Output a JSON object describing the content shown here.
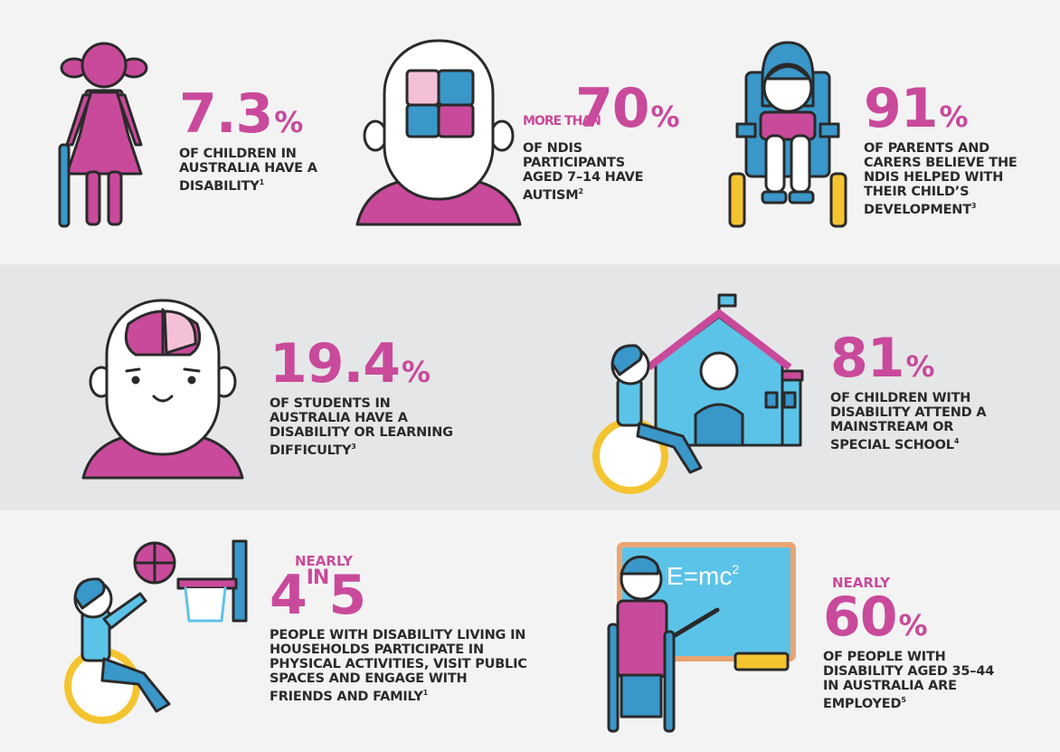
{
  "colors": {
    "pink": "#c94a9b",
    "blue": "#3a97c9",
    "light_blue": "#5cc3e8",
    "yellow": "#f4c430",
    "ink": "#2a2a2a",
    "skin": "#ffffff"
  },
  "stats": [
    {
      "value": "7.3",
      "unit": "%",
      "desc": "OF CHILDREN IN AUSTRALIA HAVE A DISABILITY",
      "ref": "1",
      "icon": "girl-with-cane-icon"
    },
    {
      "prefix": "MORE THAN",
      "value": "70",
      "unit": "%",
      "desc": "OF NDIS PARTICIPANTS AGED 7–14 HAVE AUTISM",
      "ref": "2",
      "icon": "head-puzzle-icon"
    },
    {
      "value": "91",
      "unit": "%",
      "desc": "OF PARENTS AND CARERS BELIEVE THE NDIS HELPED WITH THEIR CHILD’S DEVELOPMENT",
      "ref": "3",
      "icon": "girl-wheelchair-icon"
    },
    {
      "value": "19.4",
      "unit": "%",
      "desc": "OF STUDENTS IN AUSTRALIA HAVE A DISABILITY OR LEARNING DIFFICULTY",
      "ref": "3",
      "icon": "head-brain-icon"
    },
    {
      "value": "81",
      "unit": "%",
      "desc": "OF CHILDREN WITH DISABILITY ATTEND A MAINSTREAM OR SPECIAL SCHOOL",
      "ref": "4",
      "icon": "school-wheelchair-icon"
    },
    {
      "prefix": "NEARLY",
      "value_a": "4",
      "value_in": "IN",
      "value_b": "5",
      "desc": "PEOPLE WITH DISABILITY LIVING IN HOUSEHOLDS PARTICIPATE IN PHYSICAL ACTIVITIES, VISIT PUBLIC SPACES AND ENGAGE WITH FRIENDS AND FAMILY",
      "ref": "1",
      "icon": "basketball-wheelchair-icon"
    },
    {
      "prefix": "NEARLY",
      "value": "60",
      "unit": "%",
      "desc": "OF PEOPLE WITH DISABILITY AGED 35–44 IN AUSTRALIA ARE EMPLOYED",
      "ref": "5",
      "icon": "teacher-crutches-icon",
      "board_text": "E=mc",
      "board_sup": "2"
    }
  ]
}
